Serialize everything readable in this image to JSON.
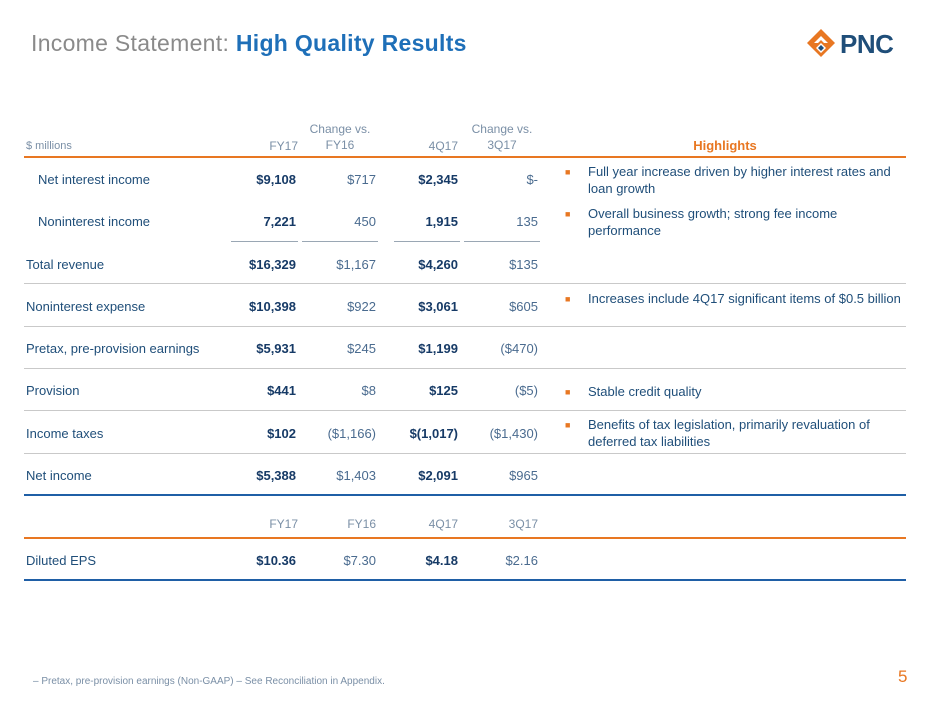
{
  "header": {
    "title_prefix": "Income Statement:",
    "title_strong": "High Quality Results",
    "logo_text": "PNC",
    "brand_color": "#1e6fb8",
    "accent_color": "#e87722"
  },
  "table": {
    "units": "$ millions",
    "columns": {
      "fy17": "FY17",
      "chg_fy16_line1": "Change vs.",
      "chg_fy16_line2": "FY16",
      "q417": "4Q17",
      "chg_3q17_line1": "Change vs.",
      "chg_3q17_line2": "3Q17",
      "highlights": "Highlights"
    },
    "rows": [
      {
        "label": "Net interest income",
        "fy17": "$9,108",
        "chg_fy16": "$717",
        "q417": "$2,345",
        "chg_3q17": "$-"
      },
      {
        "label": "Noninterest income",
        "fy17": "7,221",
        "chg_fy16": "450",
        "q417": "1,915",
        "chg_3q17": "135"
      },
      {
        "label": "Total revenue",
        "fy17": "$16,329",
        "chg_fy16": "$1,167",
        "q417": "$4,260",
        "chg_3q17": "$135"
      },
      {
        "label": "Noninterest expense",
        "fy17": "$10,398",
        "chg_fy16": "$922",
        "q417": "$3,061",
        "chg_3q17": "$605"
      },
      {
        "label": "Pretax, pre-provision earnings",
        "fy17": "$5,931",
        "chg_fy16": "$245",
        "q417": "$1,199",
        "chg_3q17": "($470)"
      },
      {
        "label": "Provision",
        "fy17": "$441",
        "chg_fy16": "$8",
        "q417": "$125",
        "chg_3q17": "($5)"
      },
      {
        "label": "Income taxes",
        "fy17": "$102",
        "chg_fy16": "($1,166)",
        "q417": "$(1,017)",
        "chg_3q17": "($1,430)"
      },
      {
        "label": "Net income",
        "fy17": "$5,388",
        "chg_fy16": "$1,403",
        "q417": "$2,091",
        "chg_3q17": "$965"
      }
    ],
    "highlights": [
      "Full year increase driven by higher interest rates and loan growth",
      "Overall business growth; strong fee income performance",
      "Increases include 4Q17 significant items of $0.5 billion",
      "Stable credit quality",
      "Benefits of tax legislation, primarily revaluation of deferred tax liabilities"
    ]
  },
  "eps": {
    "columns": {
      "fy17": "FY17",
      "fy16": "FY16",
      "q417": "4Q17",
      "q317": "3Q17"
    },
    "label": "Diluted EPS",
    "fy17": "$10.36",
    "fy16": "$7.30",
    "q417": "$4.18",
    "q317": "$2.16"
  },
  "footer": {
    "footnote": "–   Pretax, pre-provision earnings (Non-GAAP) – See Reconciliation in Appendix.",
    "page_number": "5"
  }
}
